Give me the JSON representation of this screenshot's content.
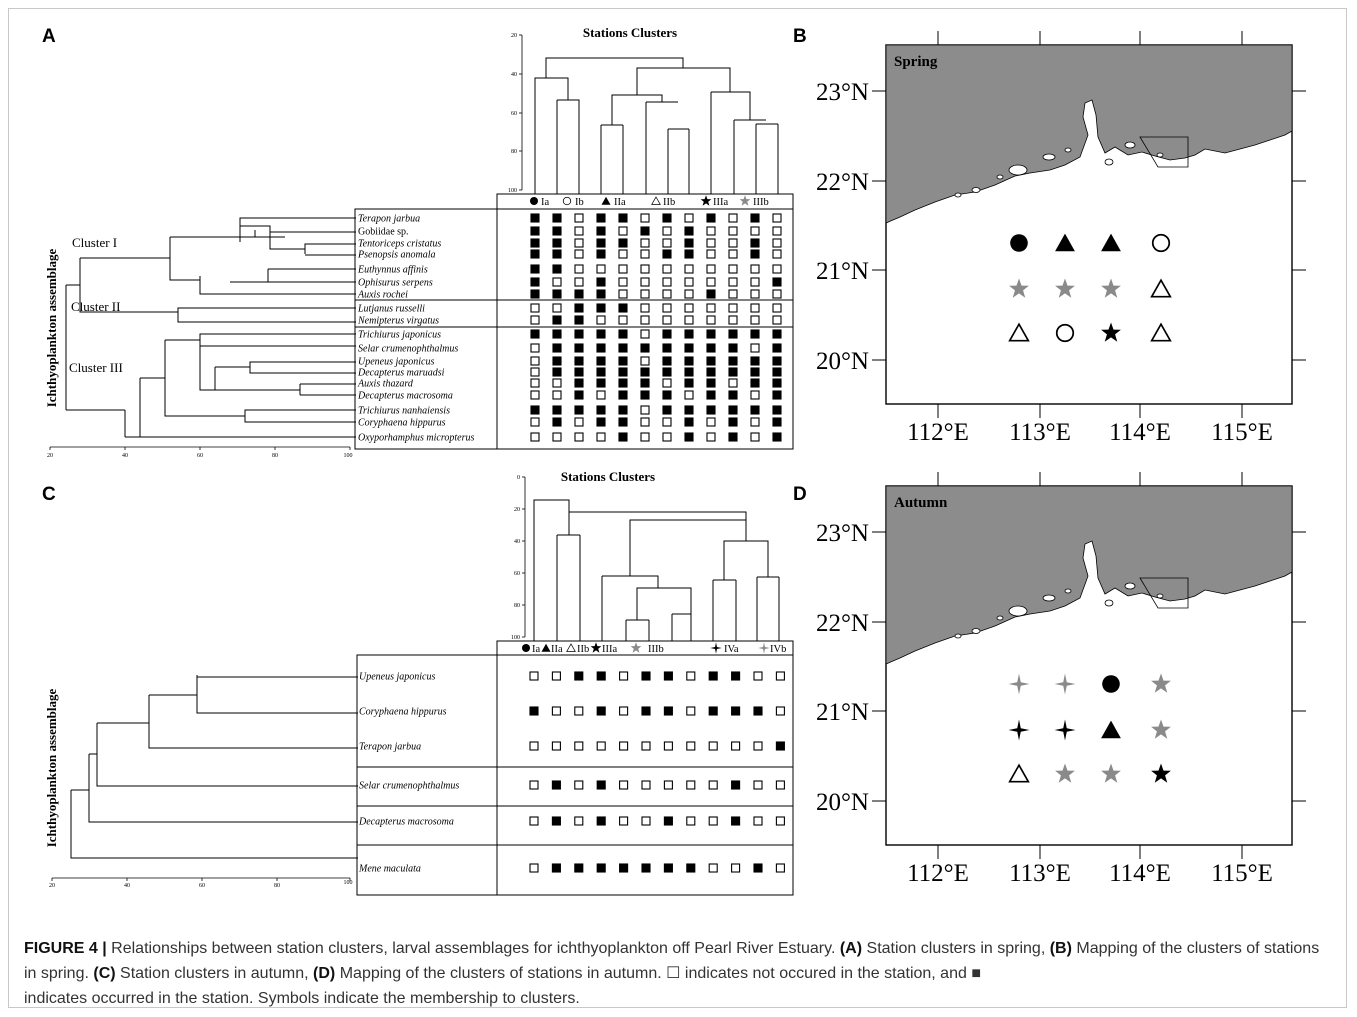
{
  "panels": {
    "A": {
      "letter": "A",
      "top_title": "Stations Clusters",
      "side_label": "Ichthyoplankton assemblage",
      "legend": [
        {
          "sym": "circle-filled",
          "label": "Ia"
        },
        {
          "sym": "circle-open",
          "label": "Ib"
        },
        {
          "sym": "triangle-filled",
          "label": "IIa"
        },
        {
          "sym": "triangle-open",
          "label": "IIb"
        },
        {
          "sym": "star-black",
          "label": "IIIa"
        },
        {
          "sym": "star-gray",
          "label": "IIIb"
        }
      ],
      "cluster_labels": [
        "Cluster I",
        "Cluster II",
        "Cluster III"
      ],
      "top_axis_ticks": [
        "20",
        "40",
        "60",
        "80",
        "100"
      ],
      "bottom_axis_ticks": [
        "20",
        "40",
        "60",
        "80",
        "100"
      ],
      "species": [
        {
          "name": "Terapon jarbua",
          "italic": true,
          "occ": [
            1,
            1,
            0,
            1,
            1,
            0,
            1,
            0,
            1,
            0,
            1,
            0
          ]
        },
        {
          "name": "Gobiidae sp.",
          "italic": false,
          "occ": [
            1,
            1,
            0,
            1,
            0,
            1,
            0,
            1,
            0,
            0,
            0,
            0
          ]
        },
        {
          "name": "Tentoriceps cristatus",
          "italic": true,
          "occ": [
            1,
            1,
            0,
            1,
            1,
            0,
            0,
            1,
            0,
            0,
            1,
            0
          ]
        },
        {
          "name": "Psenopsis anomala",
          "italic": true,
          "occ": [
            1,
            1,
            0,
            1,
            0,
            0,
            1,
            1,
            0,
            0,
            1,
            0
          ]
        },
        {
          "name": "Euthynnus affinis",
          "italic": true,
          "occ": [
            1,
            1,
            0,
            0,
            0,
            0,
            0,
            0,
            0,
            0,
            0,
            0
          ]
        },
        {
          "name": "Ophisurus serpens",
          "italic": true,
          "occ": [
            1,
            0,
            0,
            1,
            0,
            0,
            0,
            0,
            0,
            0,
            0,
            1
          ]
        },
        {
          "name": "Auxis rochei",
          "italic": true,
          "occ": [
            1,
            1,
            1,
            1,
            0,
            0,
            0,
            0,
            1,
            0,
            0,
            0
          ]
        },
        {
          "name": "Lutjanus russelli",
          "italic": true,
          "occ": [
            0,
            0,
            1,
            1,
            1,
            0,
            0,
            0,
            0,
            0,
            0,
            0
          ]
        },
        {
          "name": "Nemipterus virgatus",
          "italic": true,
          "occ": [
            0,
            1,
            1,
            0,
            0,
            0,
            0,
            0,
            0,
            0,
            0,
            0
          ]
        },
        {
          "name": "Trichiurus japonicus",
          "italic": true,
          "occ": [
            1,
            1,
            1,
            1,
            1,
            0,
            1,
            1,
            1,
            1,
            1,
            1
          ]
        },
        {
          "name": "Selar crumenophthalmus",
          "italic": true,
          "occ": [
            0,
            1,
            1,
            1,
            1,
            1,
            1,
            1,
            1,
            1,
            0,
            1
          ]
        },
        {
          "name": "Upeneus japonicus",
          "italic": true,
          "occ": [
            0,
            1,
            1,
            1,
            1,
            0,
            1,
            1,
            1,
            1,
            1,
            1
          ]
        },
        {
          "name": "Decapterus maruadsi",
          "italic": true,
          "occ": [
            0,
            1,
            1,
            1,
            1,
            1,
            1,
            1,
            1,
            1,
            1,
            1
          ]
        },
        {
          "name": "Auxis thazard",
          "italic": true,
          "occ": [
            0,
            0,
            1,
            1,
            1,
            1,
            0,
            1,
            1,
            0,
            1,
            1
          ]
        },
        {
          "name": "Decapterus macrosoma",
          "italic": true,
          "occ": [
            0,
            0,
            1,
            0,
            1,
            1,
            1,
            0,
            1,
            1,
            0,
            1
          ]
        },
        {
          "name": "Trichiurus nanhaiensis",
          "italic": true,
          "occ": [
            1,
            1,
            1,
            1,
            1,
            0,
            1,
            1,
            1,
            1,
            1,
            1
          ]
        },
        {
          "name": "Coryphaena hippurus",
          "italic": true,
          "occ": [
            0,
            1,
            0,
            1,
            1,
            0,
            0,
            1,
            0,
            1,
            0,
            1
          ]
        },
        {
          "name": "Oxyporhamphus micropterus",
          "italic": true,
          "occ": [
            0,
            0,
            0,
            0,
            1,
            0,
            0,
            1,
            0,
            1,
            0,
            1
          ]
        }
      ]
    },
    "B": {
      "letter": "B",
      "season": "Spring",
      "lat_labels": [
        "23°N",
        "22°N",
        "21°N",
        "20°N"
      ],
      "lon_labels": [
        "112°E",
        "113°E",
        "114°E",
        "115°E"
      ],
      "stations": [
        [
          "circle-filled",
          "triangle-filled",
          "triangle-filled",
          "circle-open"
        ],
        [
          "star-gray",
          "star-gray",
          "star-gray",
          "triangle-open"
        ],
        [
          "triangle-open",
          "circle-open",
          "star-black",
          "triangle-open"
        ]
      ]
    },
    "C": {
      "letter": "C",
      "top_title": "Stations Clusters",
      "side_label": "Ichthyoplankton assemblage",
      "legend": [
        {
          "sym": "circle-filled",
          "label": "Ia"
        },
        {
          "sym": "triangle-filled",
          "label": "IIa"
        },
        {
          "sym": "triangle-open",
          "label": "IIb"
        },
        {
          "sym": "star-black",
          "label": "IIIa"
        },
        {
          "sym": "star-gray",
          "label": "IIIb"
        },
        {
          "sym": "cross-black",
          "label": "IVa"
        },
        {
          "sym": "cross-gray",
          "label": "IVb"
        }
      ],
      "top_axis_ticks": [
        "0",
        "20",
        "40",
        "60",
        "80",
        "100"
      ],
      "bottom_axis_ticks": [
        "20",
        "40",
        "60",
        "80",
        "100"
      ],
      "species": [
        {
          "name": "Upeneus japonicus",
          "occ": [
            0,
            0,
            1,
            1,
            0,
            1,
            1,
            0,
            1,
            1,
            0,
            0
          ]
        },
        {
          "name": "Coryphaena hippurus",
          "occ": [
            1,
            0,
            0,
            1,
            0,
            1,
            1,
            0,
            1,
            1,
            1,
            0
          ]
        },
        {
          "name": "Terapon jarbua",
          "occ": [
            0,
            0,
            0,
            0,
            0,
            0,
            0,
            0,
            0,
            0,
            0,
            1
          ]
        },
        {
          "name": "Selar crumenophthalmus",
          "occ": [
            0,
            1,
            0,
            1,
            0,
            0,
            0,
            0,
            0,
            1,
            0,
            0
          ]
        },
        {
          "name": "Decapterus macrosoma",
          "occ": [
            0,
            1,
            0,
            1,
            0,
            0,
            1,
            0,
            0,
            1,
            0,
            0
          ]
        },
        {
          "name": "Mene maculata",
          "occ": [
            0,
            1,
            1,
            1,
            1,
            1,
            1,
            1,
            0,
            0,
            1,
            0
          ]
        }
      ]
    },
    "D": {
      "letter": "D",
      "season": "Autumn",
      "lat_labels": [
        "23°N",
        "22°N",
        "21°N",
        "20°N"
      ],
      "lon_labels": [
        "112°E",
        "113°E",
        "114°E",
        "115°E"
      ],
      "stations": [
        [
          "cross-gray",
          "cross-gray",
          "circle-filled",
          "star-gray"
        ],
        [
          "cross-black",
          "cross-black",
          "triangle-filled",
          "star-gray"
        ],
        [
          "triangle-open",
          "star-gray",
          "star-gray",
          "star-black"
        ]
      ]
    }
  },
  "caption": {
    "figure_label": "FIGURE 4 |",
    "intro": "Relationships between station clusters, larval assemblages for ichthyoplankton off Pearl River Estuary.",
    "partA_label": "(A)",
    "partA_text": "Station clusters in spring,",
    "partB_label": "(B)",
    "partB_text": "Mapping of the clusters of stations in spring.",
    "partC_label": "(C)",
    "partC_text": "Station clusters in autumn,",
    "partD_label": "(D)",
    "partD_text": "Mapping of the clusters of stations in autumn.",
    "note1": "☐ indicates not occured in the station, and ■",
    "note2": "indicates occurred in the station. Symbols indicate the membership to clusters."
  },
  "colors": {
    "land": "#8c8c8c",
    "gray_symbol": "#8a8a8a",
    "caption_text": "#333333"
  }
}
